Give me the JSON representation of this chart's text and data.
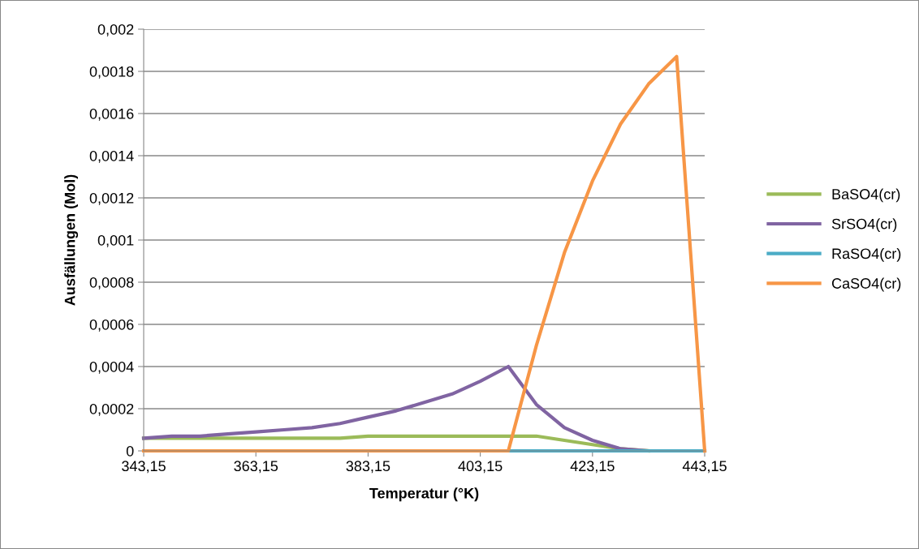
{
  "chart_data": {
    "type": "line",
    "xlabel": "Temperatur (°K)",
    "ylabel": "Ausfällungen (Mol)",
    "x": [
      343.15,
      348.15,
      353.15,
      358.15,
      363.15,
      368.15,
      373.15,
      378.15,
      383.15,
      388.15,
      393.15,
      398.15,
      403.15,
      408.15,
      413.15,
      418.15,
      423.15,
      428.15,
      433.15,
      438.15,
      443.15
    ],
    "series": [
      {
        "name": "BaSO4(cr)",
        "color": "#9bbb59",
        "values": [
          6e-05,
          6e-05,
          6e-05,
          6e-05,
          6e-05,
          6e-05,
          6e-05,
          6e-05,
          7e-05,
          7e-05,
          7e-05,
          7e-05,
          7e-05,
          7e-05,
          7e-05,
          5e-05,
          3e-05,
          1e-05,
          0,
          null,
          null
        ]
      },
      {
        "name": "SrSO4(cr)",
        "color": "#8064a2",
        "values": [
          6e-05,
          7e-05,
          7e-05,
          8e-05,
          9e-05,
          0.0001,
          0.00011,
          0.00013,
          0.00016,
          0.00019,
          0.00023,
          0.00027,
          0.00033,
          0.0004,
          0.00022,
          0.00011,
          5e-05,
          1e-05,
          0,
          0,
          0
        ]
      },
      {
        "name": "RaSO4(cr)",
        "color": "#4bacc6",
        "values": [
          null,
          null,
          null,
          null,
          null,
          null,
          null,
          null,
          null,
          null,
          null,
          null,
          null,
          0,
          0,
          0,
          0,
          0,
          0,
          0,
          0
        ]
      },
      {
        "name": "CaSO4(cr)",
        "color": "#f79646",
        "values": [
          0,
          0,
          0,
          0,
          0,
          0,
          0,
          0,
          0,
          0,
          0,
          0,
          0,
          0,
          0.0005,
          0.00094,
          0.00128,
          0.00155,
          0.00174,
          0.00187,
          0
        ]
      }
    ],
    "xlim": [
      343.15,
      443.15
    ],
    "xticks": [
      {
        "value": 343.15,
        "label": "343,15"
      },
      {
        "value": 363.15,
        "label": "363,15"
      },
      {
        "value": 383.15,
        "label": "383,15"
      },
      {
        "value": 403.15,
        "label": "403,15"
      },
      {
        "value": 423.15,
        "label": "423,15"
      },
      {
        "value": 443.15,
        "label": "443,15"
      }
    ],
    "ylim": [
      0,
      0.002
    ],
    "yticks": [
      0,
      {
        "value": 0.0002,
        "label": "0,0002"
      },
      {
        "value": 0.0004,
        "label": "0,0004"
      },
      {
        "value": 0.0006,
        "label": "0,0006"
      },
      {
        "value": 0.0008,
        "label": "0,0008"
      },
      {
        "value": 0.001,
        "label": "0,001"
      },
      {
        "value": 0.0012,
        "label": "0,0012"
      },
      {
        "value": 0.0014,
        "label": "0,0014"
      },
      {
        "value": 0.0016,
        "label": "0,0016"
      },
      {
        "value": 0.0018,
        "label": "0,0018"
      },
      {
        "value": 0.002,
        "label": "0,002"
      }
    ],
    "grid": "y",
    "legend": "right",
    "marker": "none",
    "line_style": "solid"
  }
}
